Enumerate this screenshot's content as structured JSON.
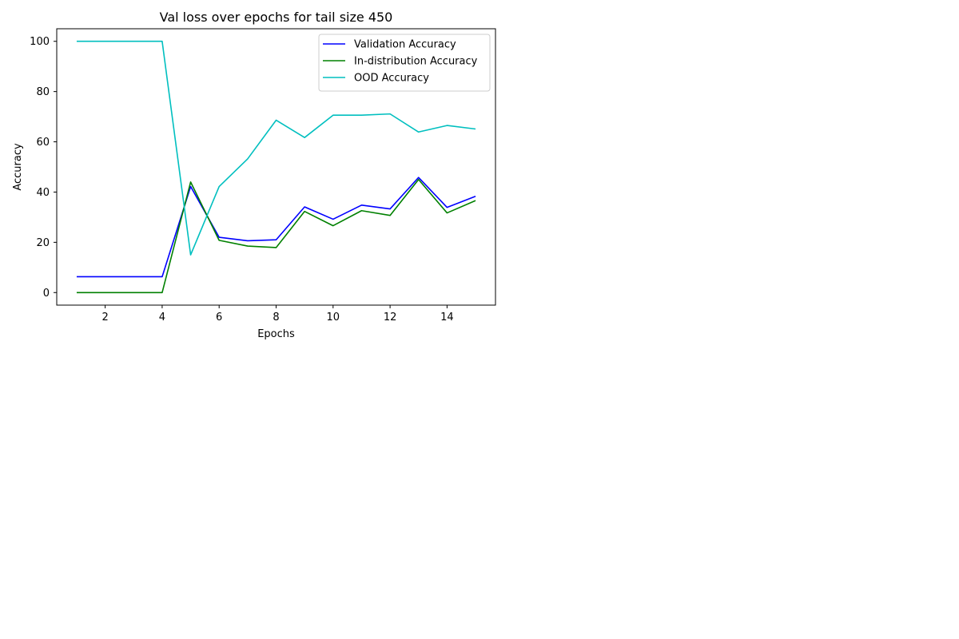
{
  "chart_data": {
    "type": "line",
    "title": "Val loss over epochs for tail size 450",
    "xlabel": "Epochs",
    "ylabel": "Accuracy",
    "x": [
      1,
      2,
      3,
      4,
      5,
      6,
      7,
      8,
      9,
      10,
      11,
      12,
      13,
      14,
      15
    ],
    "xlim": [
      0.3,
      15.7
    ],
    "ylim": [
      -5,
      105
    ],
    "xticks": [
      2,
      4,
      6,
      8,
      10,
      12,
      14
    ],
    "yticks": [
      0,
      20,
      40,
      60,
      80,
      100
    ],
    "grid": false,
    "legend_position": "top-right",
    "series": [
      {
        "name": "Validation Accuracy",
        "color": "#0000ff",
        "values": [
          6.3,
          6.3,
          6.3,
          6.3,
          42.2,
          22.0,
          20.6,
          21.0,
          34.1,
          29.2,
          34.8,
          33.3,
          45.8,
          33.9,
          38.3
        ]
      },
      {
        "name": "In-distribution Accuracy",
        "color": "#008000",
        "values": [
          0.0,
          0.0,
          0.0,
          0.0,
          44.0,
          20.8,
          18.5,
          17.9,
          32.3,
          26.6,
          32.6,
          30.7,
          45.0,
          31.7,
          36.6
        ]
      },
      {
        "name": "OOD Accuracy",
        "color": "#00bfbf",
        "values": [
          100.0,
          100.0,
          100.0,
          100.0,
          15.0,
          42.2,
          53.2,
          68.6,
          61.7,
          70.6,
          70.6,
          71.1,
          63.9,
          66.5,
          65.1
        ]
      }
    ]
  }
}
